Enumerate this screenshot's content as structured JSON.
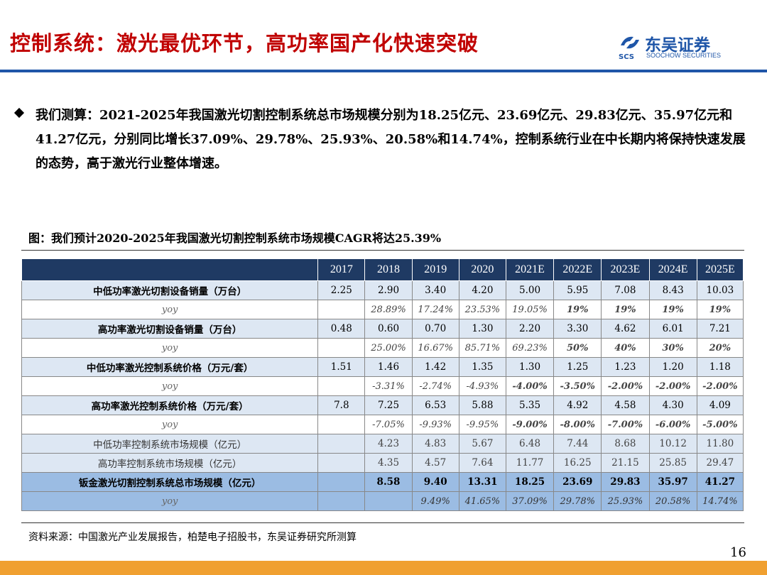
{
  "header": {
    "title": "控制系统：激光最优环节，高功率国产化快速突破",
    "logo_cn": "东吴证券",
    "logo_en": "SOOCHOW SECURITIES",
    "logo_abbr": "SCS"
  },
  "body": {
    "paragraph": "我们测算：2021-2025年我国激光切割控制系统总市场规模分别为18.25亿元、23.69亿元、29.83亿元、35.97亿元和41.27亿元，分别同比增长37.09%、29.78%、25.93%、20.58%和14.74%，控制系统行业在中长期内将保持快速发展的态势，高于激光行业整体增速。"
  },
  "table": {
    "caption": "图：我们预计2020-2025年我国激光切割控制系统市场规模CAGR将达25.39%",
    "columns": [
      "",
      "2017",
      "2018",
      "2019",
      "2020",
      "2021E",
      "2022E",
      "2023E",
      "2024E",
      "2025E"
    ],
    "rows": [
      {
        "label": "中低功率激光切割设备销量（万台）",
        "cells": [
          "2.25",
          "2.90",
          "3.40",
          "4.20",
          "5.00",
          "5.95",
          "7.08",
          "8.43",
          "10.03"
        ]
      },
      {
        "label": "yoy",
        "cells": [
          "",
          "28.89%",
          "17.24%",
          "23.53%",
          "19.05%",
          "19%",
          "19%",
          "19%",
          "19%"
        ]
      },
      {
        "label": "高功率激光切割设备销量（万台）",
        "cells": [
          "0.48",
          "0.60",
          "0.70",
          "1.30",
          "2.20",
          "3.30",
          "4.62",
          "6.01",
          "7.21"
        ]
      },
      {
        "label": "yoy",
        "cells": [
          "",
          "25.00%",
          "16.67%",
          "85.71%",
          "69.23%",
          "50%",
          "40%",
          "30%",
          "20%"
        ]
      },
      {
        "label": "中低功率激光控制系统价格（万元/套）",
        "cells": [
          "1.51",
          "1.46",
          "1.42",
          "1.35",
          "1.30",
          "1.25",
          "1.23",
          "1.20",
          "1.18"
        ]
      },
      {
        "label": "yoy",
        "cells": [
          "",
          "-3.31%",
          "-2.74%",
          "-4.93%",
          "-4.00%",
          "-3.50%",
          "-2.00%",
          "-2.00%",
          "-2.00%"
        ]
      },
      {
        "label": "高功率激光控制系统价格（万元/套）",
        "cells": [
          "7.8",
          "7.25",
          "6.53",
          "5.88",
          "5.35",
          "4.92",
          "4.58",
          "4.30",
          "4.09"
        ]
      },
      {
        "label": "yoy",
        "cells": [
          "",
          "-7.05%",
          "-9.93%",
          "-9.95%",
          "-9.00%",
          "-8.00%",
          "-7.00%",
          "-6.00%",
          "-5.00%"
        ]
      },
      {
        "label": "中低功率控制系统市场规模（亿元）",
        "cells": [
          "",
          "4.23",
          "4.83",
          "5.67",
          "6.48",
          "7.44",
          "8.68",
          "10.12",
          "11.80"
        ]
      },
      {
        "label": "高功率控制系统市场规模（亿元）",
        "cells": [
          "",
          "4.35",
          "4.57",
          "7.64",
          "11.77",
          "16.25",
          "21.15",
          "25.85",
          "29.47"
        ]
      },
      {
        "label": "钣金激光切割控制系统总市场规模（亿元）",
        "cells": [
          "",
          "8.58",
          "9.40",
          "13.31",
          "18.25",
          "23.69",
          "29.83",
          "35.97",
          "41.27"
        ]
      },
      {
        "label": "yoy",
        "cells": [
          "",
          "",
          "9.49%",
          "41.65%",
          "37.09%",
          "29.78%",
          "25.93%",
          "20.58%",
          "14.74%"
        ]
      }
    ]
  },
  "footer": {
    "source": "资料来源：中国激光产业发展报告，柏楚电子招股书，东吴证券研究所测算",
    "page_number": "16"
  },
  "colors": {
    "title_red": "#c00000",
    "brand_blue": "#1f56a8",
    "header_navy": "#1f3a63",
    "row_light": "#dde7f3",
    "total_blue": "#9bbce3",
    "forecast_red": "#e00000",
    "footer_orange": "#f0a030"
  }
}
